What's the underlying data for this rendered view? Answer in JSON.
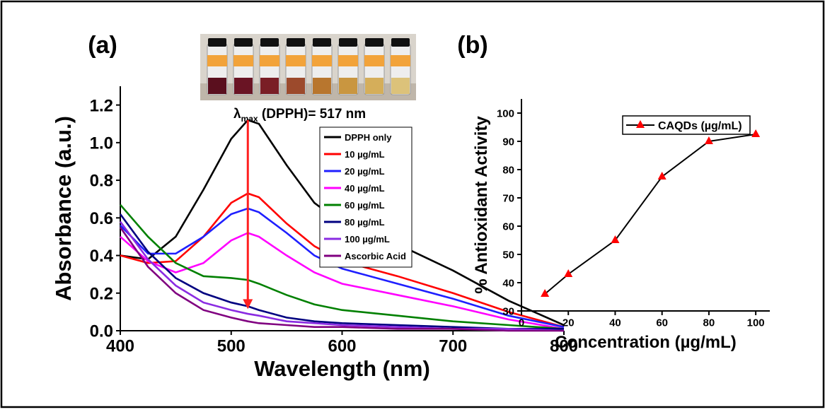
{
  "chart_data": [
    {
      "type": "line",
      "panel_label": "(a)",
      "xlabel": "Wavelength (nm)",
      "ylabel": "Absorbance (a.u.)",
      "annotation": {
        "symbol": "λ",
        "subscript": "max",
        "text": " (DPPH)= 517 nm"
      },
      "x": [
        400,
        425,
        450,
        475,
        500,
        515,
        525,
        550,
        575,
        600,
        650,
        700,
        750,
        800
      ],
      "series": [
        {
          "name": "DPPH only",
          "color": "#000000",
          "values": [
            0.4,
            0.38,
            0.5,
            0.75,
            1.02,
            1.12,
            1.1,
            0.88,
            0.68,
            0.57,
            0.46,
            0.32,
            0.16,
            0.03
          ]
        },
        {
          "name": "10 µg/mL",
          "color": "#ff0000",
          "values": [
            0.4,
            0.36,
            0.37,
            0.5,
            0.68,
            0.73,
            0.71,
            0.57,
            0.45,
            0.37,
            0.29,
            0.2,
            0.1,
            0.02
          ]
        },
        {
          "name": "20 µg/mL",
          "color": "#1f1fff",
          "values": [
            0.56,
            0.41,
            0.41,
            0.5,
            0.62,
            0.65,
            0.63,
            0.52,
            0.4,
            0.33,
            0.25,
            0.17,
            0.08,
            0.02
          ]
        },
        {
          "name": "40 µg/mL",
          "color": "#ff00ff",
          "values": [
            0.5,
            0.37,
            0.31,
            0.36,
            0.48,
            0.52,
            0.5,
            0.4,
            0.31,
            0.25,
            0.19,
            0.13,
            0.06,
            0.01
          ]
        },
        {
          "name": "60 µg/mL",
          "color": "#008000",
          "values": [
            0.67,
            0.5,
            0.36,
            0.29,
            0.28,
            0.27,
            0.25,
            0.19,
            0.14,
            0.11,
            0.08,
            0.05,
            0.03,
            0.01
          ]
        },
        {
          "name": "80 µg/mL",
          "color": "#000080",
          "values": [
            0.62,
            0.42,
            0.28,
            0.2,
            0.15,
            0.13,
            0.11,
            0.07,
            0.05,
            0.04,
            0.03,
            0.02,
            0.01,
            0.01
          ]
        },
        {
          "name": "100 µg/mL",
          "color": "#8a2be2",
          "values": [
            0.58,
            0.38,
            0.24,
            0.15,
            0.11,
            0.09,
            0.08,
            0.05,
            0.04,
            0.03,
            0.02,
            0.01,
            0.01,
            0.0
          ]
        },
        {
          "name": "Ascorbic Acid",
          "color": "#800080",
          "values": [
            0.55,
            0.34,
            0.2,
            0.11,
            0.07,
            0.05,
            0.04,
            0.03,
            0.02,
            0.02,
            0.01,
            0.01,
            0.0,
            0.0
          ]
        }
      ],
      "xlim": [
        400,
        800
      ],
      "xticks": [
        400,
        500,
        600,
        700,
        800
      ],
      "ylim": [
        0,
        1.3
      ],
      "yticks": [
        {
          "value": 0,
          "label": "0.0"
        },
        0.2,
        0.4,
        0.6,
        0.8,
        {
          "value": 1,
          "label": "1.0"
        },
        1.2
      ],
      "legend": "right",
      "marker": "none"
    },
    {
      "type": "line",
      "panel_label": "(b)",
      "xlabel": "Concentration (µg/mL)",
      "ylabel": "% Antioxidant Activity",
      "x": [
        10,
        20,
        40,
        60,
        80,
        100
      ],
      "series": [
        {
          "name": "CAQDs (µg/mL)",
          "color": "#000000",
          "marker_color": "#ff0000",
          "values": [
            36,
            43,
            55,
            77.5,
            90,
            92.5
          ]
        }
      ],
      "xlim": [
        0,
        106
      ],
      "xticks": [
        0,
        20,
        40,
        60,
        80,
        100
      ],
      "ylim": [
        30,
        105
      ],
      "yticks": [
        30,
        40,
        50,
        60,
        70,
        80,
        90,
        100
      ],
      "legend": "upper right",
      "marker": "triangle"
    }
  ]
}
